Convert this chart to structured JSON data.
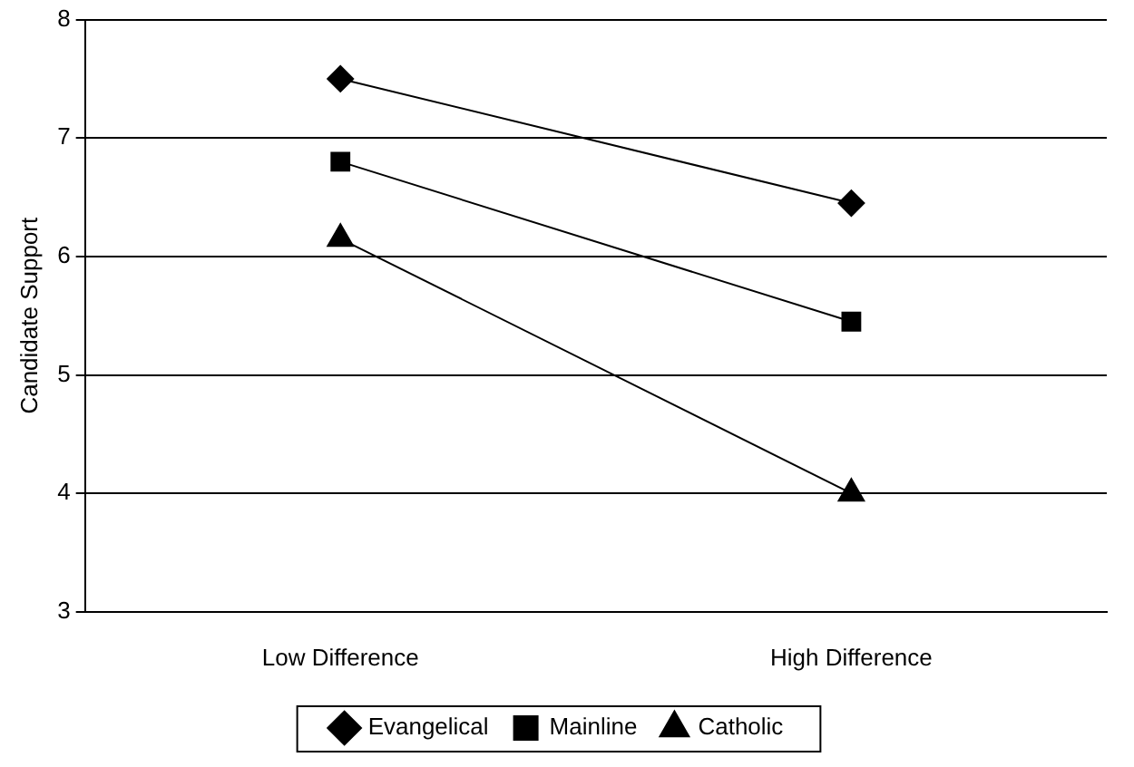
{
  "chart_data": {
    "type": "line",
    "ylabel": "Candidate Support",
    "categories": [
      "Low Difference",
      "High Difference"
    ],
    "series": [
      {
        "name": "Evangelical",
        "color": "#000000",
        "marker": "diamond",
        "values": [
          7.5,
          6.45
        ]
      },
      {
        "name": "Mainline",
        "color": "#000000",
        "marker": "square",
        "values": [
          6.8,
          5.45
        ]
      },
      {
        "name": "Catholic",
        "color": "#000000",
        "marker": "triangle",
        "values": [
          6.15,
          4.0
        ]
      }
    ],
    "ylim": [
      3,
      8
    ],
    "yticks": [
      3,
      4,
      5,
      6,
      7,
      8
    ],
    "grid": "y",
    "legend": "bottom",
    "line_style": "solid"
  }
}
